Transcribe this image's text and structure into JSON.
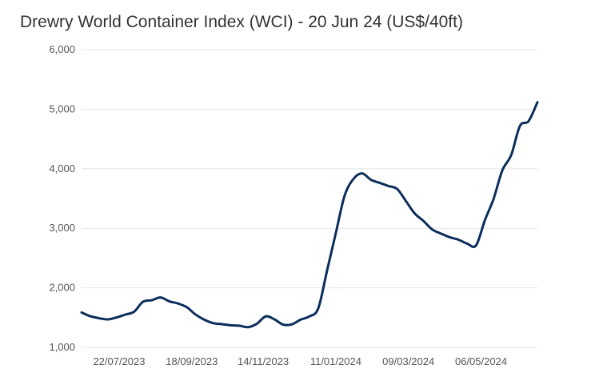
{
  "chart_data": {
    "type": "line",
    "title": "Drewry World Container Index (WCI) - 20 Jun 24 (US$/40ft)",
    "xlabel": "",
    "ylabel": "",
    "ylim": [
      1000,
      6000
    ],
    "yticks": [
      1000,
      2000,
      3000,
      4000,
      5000,
      6000
    ],
    "ytick_labels": [
      "1,000",
      "2,000",
      "3,000",
      "4,000",
      "5,000",
      "6,000"
    ],
    "xtick_labels": [
      "22/07/2023",
      "18/09/2023",
      "14/11/2023",
      "11/01/2024",
      "09/03/2024",
      "06/05/2024"
    ],
    "xtick_dates": [
      "2023-07-22",
      "2023-09-18",
      "2023-11-14",
      "2024-01-11",
      "2024-03-09",
      "2024-05-06"
    ],
    "xlim": [
      "2023-06-22",
      "2024-06-20"
    ],
    "grid": true,
    "legend": "none",
    "series": [
      {
        "color": "#0b2e5c",
        "x": [
          "2023-06-22",
          "2023-06-29",
          "2023-07-06",
          "2023-07-13",
          "2023-07-20",
          "2023-07-27",
          "2023-08-03",
          "2023-08-10",
          "2023-08-17",
          "2023-08-24",
          "2023-08-31",
          "2023-09-07",
          "2023-09-14",
          "2023-09-21",
          "2023-09-28",
          "2023-10-05",
          "2023-10-12",
          "2023-10-19",
          "2023-10-26",
          "2023-11-02",
          "2023-11-09",
          "2023-11-16",
          "2023-11-23",
          "2023-11-30",
          "2023-12-07",
          "2023-12-14",
          "2023-12-21",
          "2023-12-28",
          "2024-01-04",
          "2024-01-11",
          "2024-01-18",
          "2024-01-25",
          "2024-02-01",
          "2024-02-08",
          "2024-02-15",
          "2024-02-22",
          "2024-02-29",
          "2024-03-07",
          "2024-03-14",
          "2024-03-21",
          "2024-03-28",
          "2024-04-04",
          "2024-04-11",
          "2024-04-18",
          "2024-04-25",
          "2024-05-02",
          "2024-05-09",
          "2024-05-16",
          "2024-05-23",
          "2024-05-30",
          "2024-06-06",
          "2024-06-13",
          "2024-06-20"
        ],
        "y": [
          1586,
          1523,
          1490,
          1470,
          1503,
          1551,
          1600,
          1766,
          1792,
          1839,
          1774,
          1737,
          1675,
          1552,
          1465,
          1407,
          1390,
          1372,
          1364,
          1340,
          1397,
          1521,
          1470,
          1382,
          1388,
          1467,
          1521,
          1656,
          2287,
          2918,
          3545,
          3826,
          3921,
          3815,
          3763,
          3710,
          3660,
          3457,
          3250,
          3123,
          2980,
          2911,
          2850,
          2808,
          2741,
          2713,
          3133,
          3494,
          3975,
          4226,
          4716,
          4801,
          5117
        ]
      }
    ]
  }
}
